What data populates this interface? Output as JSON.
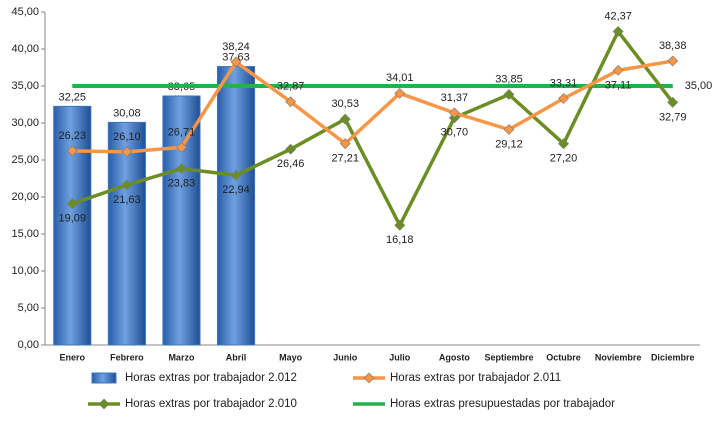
{
  "chart_data": {
    "type": "bar",
    "categories": [
      "Enero",
      "Febrero",
      "Marzo",
      "Abril",
      "Mayo",
      "Junio",
      "Julio",
      "Agosto",
      "Septiembre",
      "Octubre",
      "Noviembre",
      "Diciembre"
    ],
    "ylim": [
      0,
      45
    ],
    "yticks": [
      {
        "value": 0,
        "label": "0,00"
      },
      {
        "value": 5,
        "label": "5,00"
      },
      {
        "value": 10,
        "label": "10,00"
      },
      {
        "value": 15,
        "label": "15,00"
      },
      {
        "value": 20,
        "label": "20,00"
      },
      {
        "value": 25,
        "label": "25,00"
      },
      {
        "value": 30,
        "label": "30,00"
      },
      {
        "value": 35,
        "label": "35,00"
      },
      {
        "value": 40,
        "label": "40,00"
      },
      {
        "value": 45,
        "label": "45,00"
      }
    ],
    "grid": false,
    "legend": "bottom",
    "series": [
      {
        "name": "Horas extras por trabajador 2.012",
        "type": "bar",
        "color": "#3a75c4",
        "values": [
          32.25,
          30.08,
          33.65,
          37.63,
          null,
          null,
          null,
          null,
          null,
          null,
          null,
          null
        ],
        "value_labels": [
          "32,25",
          "30,08",
          "33,65",
          "37,63",
          null,
          null,
          null,
          null,
          null,
          null,
          null,
          null
        ]
      },
      {
        "name": "Horas extras por trabajador 2.011",
        "type": "line",
        "color": "#f79646",
        "values": [
          26.23,
          26.1,
          26.71,
          38.24,
          32.87,
          27.21,
          34.01,
          31.37,
          29.12,
          33.31,
          37.11,
          38.38
        ],
        "value_labels": [
          "26,23",
          "26,10",
          "26,71",
          "38,24",
          "32,87",
          "27,21",
          "34,01",
          "31,37",
          "29,12",
          "33,31",
          "37,11",
          "38,38"
        ]
      },
      {
        "name": "Horas extras por trabajador 2.010",
        "type": "line",
        "color": "#6b8e23",
        "values": [
          19.09,
          21.63,
          23.83,
          22.94,
          26.46,
          30.53,
          16.18,
          30.7,
          33.85,
          27.2,
          42.37,
          32.79
        ],
        "value_labels": [
          "19,09",
          "21,63",
          "23,83",
          "22,94",
          "26,46",
          "30,53",
          "16,18",
          "30,70",
          "33,85",
          "27,20",
          "42,37",
          "32,79"
        ]
      },
      {
        "name": "Horas extras presupuestadas por trabajador",
        "type": "line",
        "color": "#22b14c",
        "values": [
          35,
          35,
          35,
          35,
          35,
          35,
          35,
          35,
          35,
          35,
          35,
          35
        ],
        "value_labels": [
          null,
          null,
          null,
          null,
          null,
          null,
          null,
          null,
          null,
          null,
          null,
          "35,00"
        ]
      }
    ]
  }
}
